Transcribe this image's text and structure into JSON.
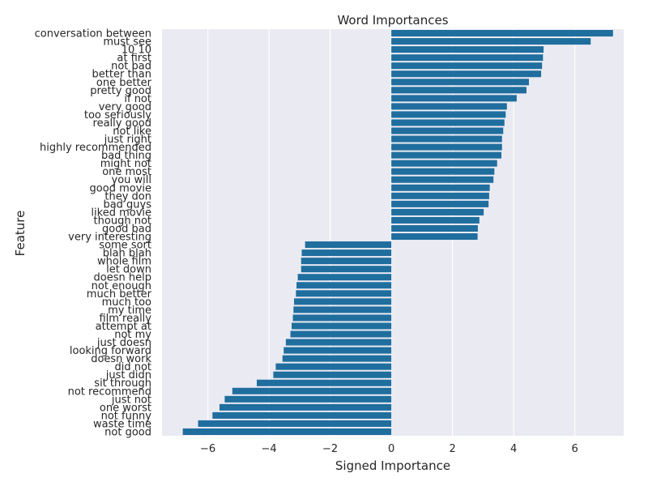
{
  "chart_data": {
    "type": "bar",
    "orientation": "horizontal",
    "title": "Word Importances",
    "xlabel": "Signed Importance",
    "ylabel": "Feature",
    "xlim": [
      -7.5,
      7.6
    ],
    "xticks": [
      -6,
      -4,
      -2,
      0,
      2,
      4,
      6
    ],
    "xtick_labels": [
      "−6",
      "−4",
      "−2",
      "0",
      "2",
      "4",
      "6"
    ],
    "grid": true,
    "bar_color": "#1f6e9e",
    "background_color": "#eaeaf2",
    "categories": [
      "conversation between",
      "must see",
      "10 10",
      "at first",
      "not bad",
      "better than",
      "one better",
      "pretty good",
      "if not",
      "very good",
      "too seriously",
      "really good",
      "not like",
      "just right",
      "highly recommended",
      "bad thing",
      "might not",
      "one most",
      "you will",
      "good movie",
      "they don",
      "bad guys",
      "liked movie",
      "though not",
      "good bad",
      "very interesting",
      "some sort",
      "blah blah",
      "whole film",
      "let down",
      "doesn help",
      "not enough",
      "much better",
      "much too",
      "my time",
      "film really",
      "attempt at",
      "not my",
      "just doesn",
      "looking forward",
      "doesn work",
      "did not",
      "just didn",
      "sit through",
      "not recommend",
      "just not",
      "one worst",
      "not funny",
      "waste time",
      "not good"
    ],
    "values": [
      7.25,
      6.52,
      4.98,
      4.96,
      4.93,
      4.9,
      4.5,
      4.42,
      4.1,
      3.78,
      3.74,
      3.7,
      3.66,
      3.62,
      3.62,
      3.6,
      3.46,
      3.37,
      3.34,
      3.22,
      3.2,
      3.18,
      3.02,
      2.88,
      2.83,
      2.82,
      -2.82,
      -2.93,
      -2.95,
      -2.95,
      -3.06,
      -3.1,
      -3.12,
      -3.18,
      -3.2,
      -3.22,
      -3.26,
      -3.3,
      -3.45,
      -3.52,
      -3.56,
      -3.78,
      -3.86,
      -4.4,
      -5.2,
      -5.45,
      -5.62,
      -5.85,
      -6.32,
      -6.82
    ]
  }
}
